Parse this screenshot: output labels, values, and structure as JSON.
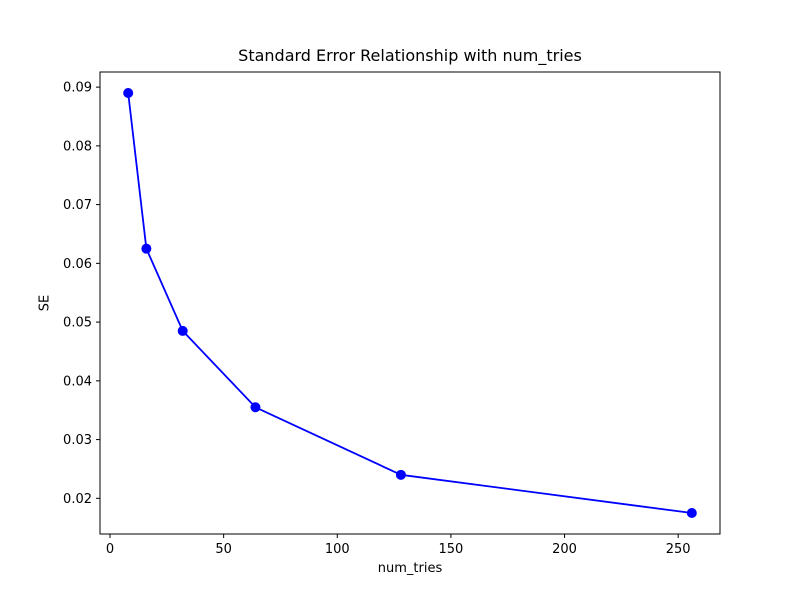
{
  "chart_data": {
    "type": "line",
    "title": "Standard Error Relationship with num_tries",
    "xlabel": "num_tries",
    "ylabel": "SE",
    "x": [
      8,
      16,
      32,
      64,
      128,
      256
    ],
    "y": [
      0.089,
      0.0625,
      0.0485,
      0.0355,
      0.024,
      0.0175
    ],
    "xlim": [
      -4.4,
      268.4
    ],
    "ylim": [
      0.013925,
      0.092575
    ],
    "xticks": [
      0,
      50,
      100,
      150,
      200,
      250
    ],
    "yticks": [
      0.02,
      0.03,
      0.04,
      0.05,
      0.06,
      0.07,
      0.08,
      0.09
    ],
    "ytick_decimals": 2,
    "grid": false,
    "legend": null,
    "line_color": "#0000ff",
    "marker": "circle",
    "spine_color": "#000000",
    "background": "#ffffff"
  }
}
